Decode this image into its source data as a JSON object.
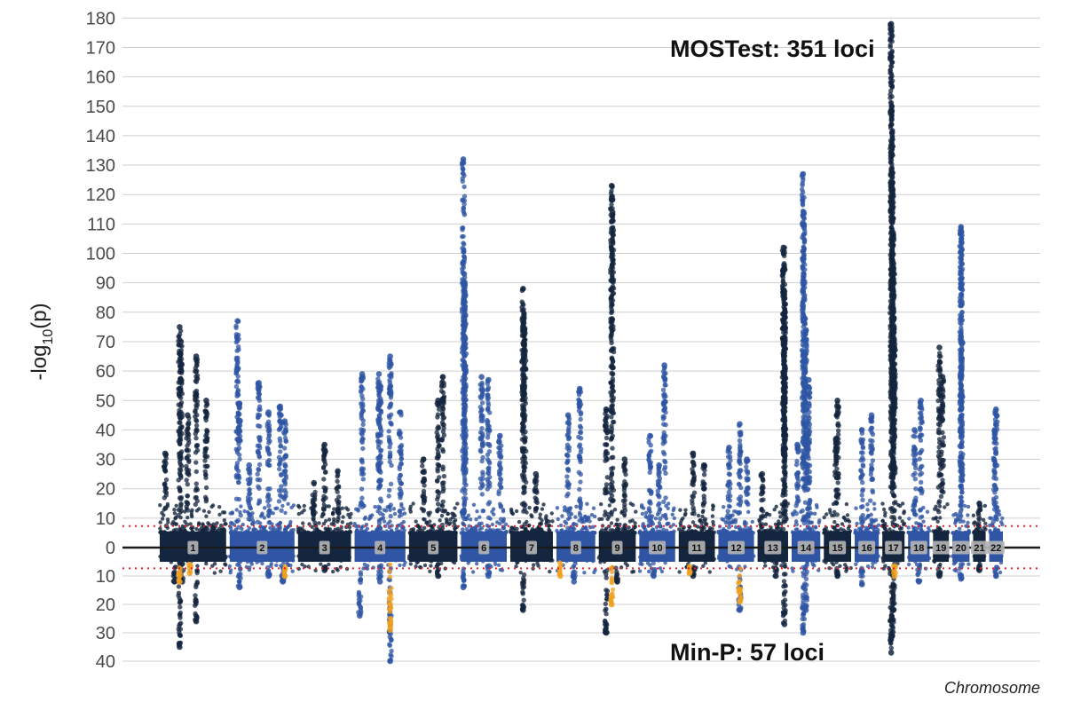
{
  "chart_data": {
    "type": "scatter",
    "subtype": "miami-plot",
    "title": "",
    "xlabel": "Chromosome",
    "ylabel": {
      "prefix": "-log",
      "subscript": "10",
      "suffix": "(p)"
    },
    "upper_panel": {
      "label": "MOSTest: 351 loci",
      "ylim": [
        0,
        180
      ],
      "ticks": [
        0,
        10,
        20,
        30,
        40,
        50,
        60,
        70,
        80,
        90,
        100,
        110,
        120,
        130,
        140,
        150,
        160,
        170,
        180
      ]
    },
    "lower_panel": {
      "label": "Min-P: 57 loci",
      "ylim": [
        0,
        40
      ],
      "ticks": [
        10,
        20,
        30,
        40
      ]
    },
    "significance_threshold": 7.3,
    "grid": true,
    "colors": {
      "dark": "#14263f",
      "blue": "#2f55a4",
      "highlight": "#f0a020",
      "threshold": "#e8202a",
      "baseline": "#1a1a1a",
      "grid": "#cfcfcf"
    },
    "chromosomes": [
      {
        "chr": "1",
        "label": "1",
        "relative_length": 248,
        "peaks_up": [
          [
            0.08,
            32
          ],
          [
            0.3,
            75
          ],
          [
            0.32,
            70
          ],
          [
            0.55,
            65
          ],
          [
            0.7,
            50
          ],
          [
            0.42,
            45
          ]
        ],
        "peaks_down": [
          [
            0.3,
            35
          ],
          [
            0.34,
            12
          ],
          [
            0.55,
            26
          ],
          [
            0.22,
            12
          ]
        ],
        "highlight_down": [
          [
            0.3,
            12
          ],
          [
            0.45,
            9
          ]
        ]
      },
      {
        "chr": "2",
        "label": "2",
        "relative_length": 242,
        "peaks_up": [
          [
            0.12,
            77
          ],
          [
            0.15,
            49
          ],
          [
            0.45,
            56
          ],
          [
            0.6,
            46
          ],
          [
            0.78,
            48
          ],
          [
            0.85,
            43
          ],
          [
            0.3,
            28
          ]
        ],
        "peaks_down": [
          [
            0.15,
            14
          ],
          [
            0.6,
            10
          ],
          [
            0.82,
            12
          ]
        ],
        "highlight_down": [
          [
            0.85,
            10
          ]
        ]
      },
      {
        "chr": "3",
        "label": "3",
        "relative_length": 198,
        "peaks_up": [
          [
            0.5,
            35
          ],
          [
            0.75,
            26
          ],
          [
            0.3,
            22
          ]
        ],
        "peaks_down": [
          [
            0.5,
            8
          ]
        ],
        "highlight_down": []
      },
      {
        "chr": "4",
        "label": "4",
        "relative_length": 190,
        "peaks_up": [
          [
            0.15,
            59
          ],
          [
            0.48,
            59
          ],
          [
            0.5,
            55
          ],
          [
            0.7,
            65
          ],
          [
            0.9,
            46
          ]
        ],
        "peaks_down": [
          [
            0.1,
            24
          ],
          [
            0.5,
            12
          ],
          [
            0.7,
            40
          ]
        ],
        "highlight_down": [
          [
            0.7,
            29
          ]
        ]
      },
      {
        "chr": "5",
        "label": "5",
        "relative_length": 181,
        "peaks_up": [
          [
            0.6,
            50
          ],
          [
            0.7,
            58
          ],
          [
            0.3,
            30
          ]
        ],
        "peaks_down": [
          [
            0.6,
            10
          ]
        ],
        "highlight_down": []
      },
      {
        "chr": "6",
        "label": "6",
        "relative_length": 171,
        "peaks_up": [
          [
            0.05,
            132
          ],
          [
            0.07,
            93
          ],
          [
            0.08,
            87
          ],
          [
            0.09,
            71
          ],
          [
            0.45,
            58
          ],
          [
            0.6,
            57
          ],
          [
            0.85,
            38
          ]
        ],
        "peaks_down": [
          [
            0.05,
            14
          ],
          [
            0.6,
            10
          ]
        ],
        "highlight_down": []
      },
      {
        "chr": "7",
        "label": "7",
        "relative_length": 159,
        "peaks_up": [
          [
            0.3,
            88
          ],
          [
            0.32,
            78
          ],
          [
            0.34,
            73
          ],
          [
            0.6,
            25
          ]
        ],
        "peaks_down": [
          [
            0.3,
            22
          ]
        ],
        "highlight_down": []
      },
      {
        "chr": "8",
        "label": "8",
        "relative_length": 145,
        "peaks_up": [
          [
            0.6,
            54
          ],
          [
            0.3,
            45
          ]
        ],
        "peaks_down": [
          [
            0.45,
            12
          ]
        ],
        "highlight_down": [
          [
            0.1,
            10
          ]
        ]
      },
      {
        "chr": "9",
        "label": "9",
        "relative_length": 138,
        "peaks_up": [
          [
            0.2,
            47
          ],
          [
            0.35,
            123
          ],
          [
            0.37,
            114
          ],
          [
            0.7,
            30
          ]
        ],
        "peaks_down": [
          [
            0.2,
            30
          ],
          [
            0.5,
            12
          ]
        ],
        "highlight_down": [
          [
            0.35,
            20
          ]
        ]
      },
      {
        "chr": "10",
        "label": "10",
        "relative_length": 134,
        "peaks_up": [
          [
            0.3,
            38
          ],
          [
            0.7,
            62
          ],
          [
            0.55,
            28
          ]
        ],
        "peaks_down": [
          [
            0.4,
            10
          ]
        ],
        "highlight_down": []
      },
      {
        "chr": "11",
        "label": "11",
        "relative_length": 135,
        "peaks_up": [
          [
            0.4,
            32
          ],
          [
            0.7,
            28
          ]
        ],
        "peaks_down": [
          [
            0.4,
            10
          ]
        ],
        "highlight_down": [
          [
            0.3,
            9
          ]
        ]
      },
      {
        "chr": "12",
        "label": "12",
        "relative_length": 133,
        "peaks_up": [
          [
            0.3,
            34
          ],
          [
            0.6,
            42
          ],
          [
            0.8,
            30
          ]
        ],
        "peaks_down": [
          [
            0.6,
            22
          ]
        ],
        "highlight_down": [
          [
            0.6,
            19
          ]
        ]
      },
      {
        "chr": "13",
        "label": "13",
        "relative_length": 114,
        "peaks_up": [
          [
            0.15,
            25
          ],
          [
            0.85,
            102
          ],
          [
            0.87,
            96
          ],
          [
            0.88,
            87
          ],
          [
            0.89,
            80
          ],
          [
            0.88,
            58
          ]
        ],
        "peaks_down": [
          [
            0.88,
            27
          ],
          [
            0.6,
            10
          ]
        ],
        "highlight_down": []
      },
      {
        "chr": "14",
        "label": "14",
        "relative_length": 107,
        "peaks_up": [
          [
            0.2,
            35
          ],
          [
            0.4,
            127
          ],
          [
            0.42,
            114
          ],
          [
            0.45,
            78
          ],
          [
            0.5,
            74
          ],
          [
            0.6,
            57
          ],
          [
            0.55,
            40
          ]
        ],
        "peaks_down": [
          [
            0.4,
            30
          ],
          [
            0.5,
            22
          ]
        ],
        "highlight_down": []
      },
      {
        "chr": "15",
        "label": "15",
        "relative_length": 102,
        "peaks_up": [
          [
            0.5,
            50
          ],
          [
            0.45,
            37
          ]
        ],
        "peaks_down": [
          [
            0.5,
            10
          ]
        ],
        "highlight_down": []
      },
      {
        "chr": "16",
        "label": "16",
        "relative_length": 90,
        "peaks_up": [
          [
            0.3,
            40
          ],
          [
            0.7,
            45
          ]
        ],
        "peaks_down": [
          [
            0.3,
            13
          ]
        ],
        "highlight_down": []
      },
      {
        "chr": "17",
        "label": "17",
        "relative_length": 83,
        "peaks_up": [
          [
            0.4,
            178
          ],
          [
            0.42,
            150
          ],
          [
            0.44,
            141
          ],
          [
            0.46,
            124
          ],
          [
            0.48,
            107
          ],
          [
            0.5,
            95
          ],
          [
            0.52,
            78
          ],
          [
            0.54,
            68
          ]
        ],
        "peaks_down": [
          [
            0.4,
            37
          ],
          [
            0.45,
            31
          ],
          [
            0.5,
            22
          ]
        ],
        "highlight_down": [
          [
            0.55,
            10
          ]
        ]
      },
      {
        "chr": "18",
        "label": "18",
        "relative_length": 80,
        "peaks_up": [
          [
            0.6,
            50
          ],
          [
            0.3,
            40
          ]
        ],
        "peaks_down": [
          [
            0.5,
            12
          ]
        ],
        "highlight_down": []
      },
      {
        "chr": "19",
        "label": "19",
        "relative_length": 59,
        "peaks_up": [
          [
            0.4,
            68
          ],
          [
            0.6,
            58
          ]
        ],
        "peaks_down": [
          [
            0.4,
            10
          ]
        ],
        "highlight_down": []
      },
      {
        "chr": "20",
        "label": "20",
        "relative_length": 64,
        "peaks_up": [
          [
            0.5,
            109
          ],
          [
            0.52,
            104
          ],
          [
            0.55,
            70
          ],
          [
            0.5,
            64
          ]
        ],
        "peaks_down": [
          [
            0.5,
            11
          ]
        ],
        "highlight_down": []
      },
      {
        "chr": "21",
        "label": "21",
        "relative_length": 47,
        "peaks_up": [
          [
            0.5,
            15
          ]
        ],
        "peaks_down": [
          [
            0.5,
            8
          ]
        ],
        "highlight_down": []
      },
      {
        "chr": "22",
        "label": "22",
        "relative_length": 51,
        "peaks_up": [
          [
            0.5,
            47
          ],
          [
            0.4,
            40
          ]
        ],
        "peaks_down": [
          [
            0.5,
            10
          ]
        ],
        "highlight_down": []
      }
    ]
  }
}
